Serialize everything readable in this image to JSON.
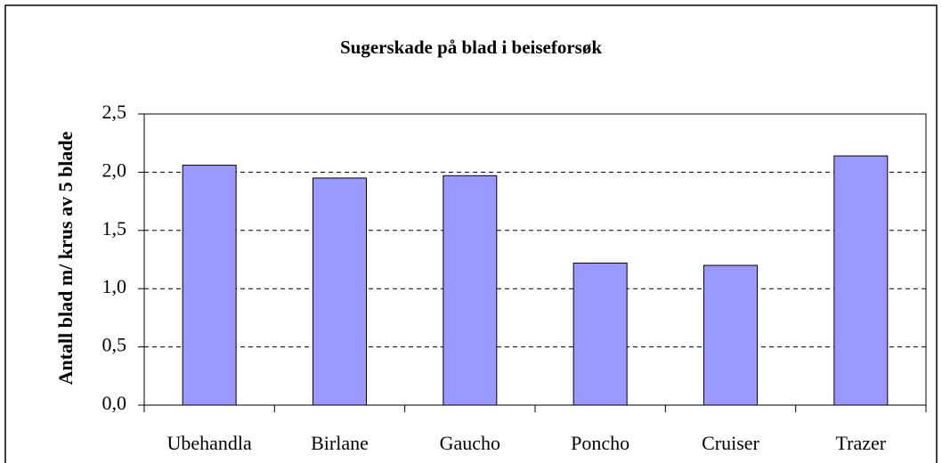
{
  "chart_data": {
    "type": "bar",
    "title": "Sugerskade på blad i beiseforsøk",
    "y_label": "Antall blad m/ krus av 5 blade",
    "categories": [
      "Ubehandla",
      "Birlane",
      "Gaucho",
      "Poncho",
      "Cruiser",
      "Trazer"
    ],
    "values": [
      2.06,
      1.95,
      1.97,
      1.22,
      1.2,
      2.14
    ],
    "color": "#9999ff",
    "ylim": [
      0,
      2.5
    ],
    "yticks": [
      {
        "value": 0,
        "label": "0,0"
      },
      {
        "value": 0.5,
        "label": "0,5"
      },
      {
        "value": 1,
        "label": "1,0"
      },
      {
        "value": 1.5,
        "label": "1,5"
      },
      {
        "value": 2,
        "label": "2,0"
      },
      {
        "value": 2.5,
        "label": "2,5"
      }
    ],
    "grid": true
  }
}
